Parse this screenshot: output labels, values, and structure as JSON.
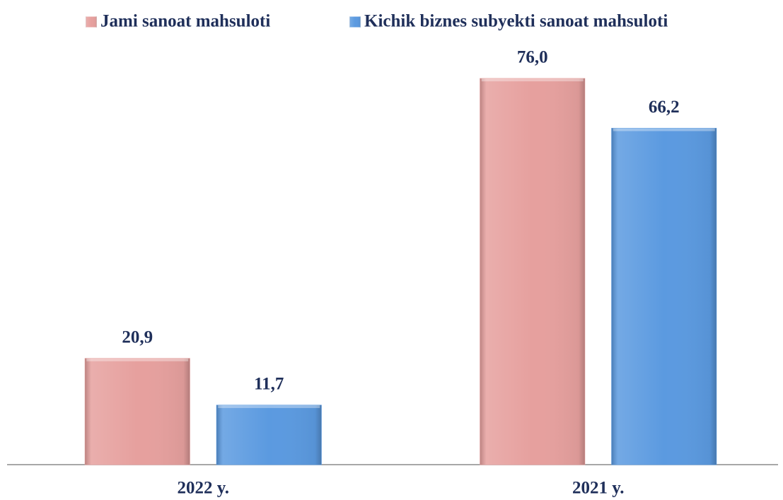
{
  "chart_data": {
    "type": "bar",
    "categories": [
      "2022 y.",
      "2021 y."
    ],
    "series": [
      {
        "name": "Jami sanoat mahsuloti",
        "color": "#e6a09e",
        "values": [
          20.9,
          76.0
        ],
        "value_labels": [
          "20,9",
          "76,0"
        ]
      },
      {
        "name": "Kichik biznes subyekti sanoat mahsuloti",
        "color": "#5b9ae0",
        "values": [
          11.7,
          66.2
        ],
        "value_labels": [
          "11,7",
          "66,2"
        ]
      }
    ]
  }
}
